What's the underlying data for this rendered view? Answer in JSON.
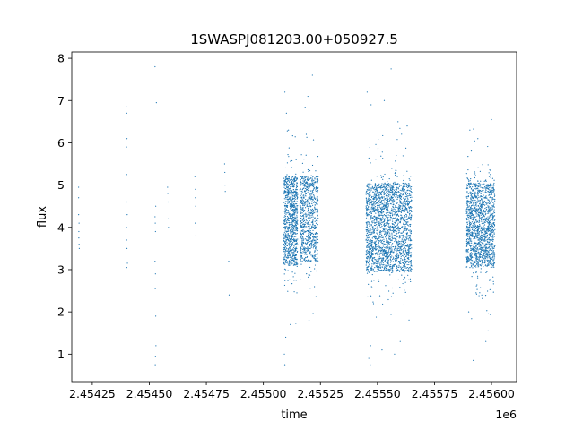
{
  "chart_data": {
    "type": "scatter",
    "title": "1SWASPJ081203.00+050927.5",
    "xlabel": "time",
    "ylabel": "flux",
    "x_offset_label": "1e6",
    "xlim": [
      2454160,
      2456110
    ],
    "ylim": [
      0.35,
      8.15
    ],
    "x_ticks": [
      2454250,
      2454500,
      2454750,
      2455000,
      2455250,
      2455500,
      2455750,
      2456000
    ],
    "x_tick_labels": [
      "2.45425",
      "2.45450",
      "2.45475",
      "2.45500",
      "2.45525",
      "2.45550",
      "2.45575",
      "2.45600"
    ],
    "y_ticks": [
      1,
      2,
      3,
      4,
      5,
      6,
      7,
      8
    ],
    "y_tick_labels": [
      "1",
      "2",
      "3",
      "4",
      "5",
      "6",
      "7",
      "8"
    ],
    "grid": false,
    "marker_color": "#1f77b4",
    "series": [
      {
        "x": [
          2454190,
          2454190,
          2454191,
          2454192,
          2454193,
          2454192,
          2454190,
          2454191,
          2454400,
          2454401,
          2454402,
          2454400,
          2454401,
          2454402,
          2454403,
          2454400,
          2454401,
          2454402,
          2454404,
          2454401,
          2454525,
          2454526,
          2454527,
          2454528,
          2454525,
          2454527,
          2454526,
          2454528,
          2454529,
          2454527,
          2454526,
          2454525,
          2454531,
          2454580,
          2454581,
          2454582,
          2454583,
          2454584,
          2454700,
          2454702,
          2454703,
          2454701,
          2454704,
          2454702,
          2454830,
          2454831,
          2454832,
          2454833,
          2454850,
          2454848
        ],
        "y": [
          4.95,
          4.3,
          3.9,
          3.6,
          3.5,
          4.1,
          4.7,
          3.75,
          6.85,
          6.7,
          6.1,
          5.9,
          5.25,
          4.6,
          4.3,
          4.0,
          3.7,
          3.5,
          3.15,
          3.05,
          4.25,
          4.1,
          3.9,
          4.5,
          3.2,
          2.9,
          2.55,
          1.9,
          1.2,
          0.95,
          0.75,
          7.8,
          6.95,
          4.95,
          4.8,
          4.6,
          4.2,
          4.0,
          5.2,
          4.9,
          4.5,
          4.1,
          3.8,
          4.7,
          5.5,
          5.3,
          5.0,
          4.85,
          2.4,
          3.2
        ]
      }
    ],
    "dense_segments": [
      {
        "x_start": 2455090,
        "x_end": 2455150,
        "y_center": 4.15,
        "y_spread": 1.05,
        "count": 900
      },
      {
        "x_start": 2455160,
        "x_end": 2455240,
        "y_center": 4.2,
        "y_spread": 1.0,
        "count": 800
      },
      {
        "x_start": 2455450,
        "x_end": 2455650,
        "y_center": 4.0,
        "y_spread": 1.05,
        "count": 2200
      },
      {
        "x_start": 2455890,
        "x_end": 2456015,
        "y_center": 4.05,
        "y_spread": 1.0,
        "count": 1500
      }
    ],
    "outliers": [
      {
        "x": 2455094,
        "y": 7.2
      },
      {
        "x": 2455101,
        "y": 6.7
      },
      {
        "x": 2455110,
        "y": 6.3
      },
      {
        "x": 2455098,
        "y": 1.4
      },
      {
        "x": 2455092,
        "y": 1.0
      },
      {
        "x": 2455094,
        "y": 0.75
      },
      {
        "x": 2455118,
        "y": 1.7
      },
      {
        "x": 2455195,
        "y": 7.1
      },
      {
        "x": 2455215,
        "y": 7.6
      },
      {
        "x": 2455188,
        "y": 6.2
      },
      {
        "x": 2455200,
        "y": 1.8
      },
      {
        "x": 2455455,
        "y": 7.2
      },
      {
        "x": 2455472,
        "y": 6.9
      },
      {
        "x": 2455530,
        "y": 7.0
      },
      {
        "x": 2455560,
        "y": 7.75
      },
      {
        "x": 2455590,
        "y": 6.5
      },
      {
        "x": 2455470,
        "y": 1.2
      },
      {
        "x": 2455462,
        "y": 0.9
      },
      {
        "x": 2455468,
        "y": 0.75
      },
      {
        "x": 2455520,
        "y": 1.1
      },
      {
        "x": 2455575,
        "y": 1.0
      },
      {
        "x": 2455600,
        "y": 1.3
      },
      {
        "x": 2455905,
        "y": 6.3
      },
      {
        "x": 2455940,
        "y": 6.1
      },
      {
        "x": 2456000,
        "y": 6.55
      },
      {
        "x": 2455900,
        "y": 2.0
      },
      {
        "x": 2455920,
        "y": 0.85
      },
      {
        "x": 2455975,
        "y": 1.3
      },
      {
        "x": 2455985,
        "y": 1.55
      }
    ]
  }
}
